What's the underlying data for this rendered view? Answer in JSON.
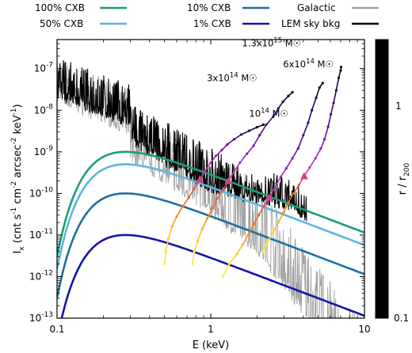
{
  "chart_data": {
    "type": "line",
    "xlabel": "E (keV)",
    "ylabel": "I_x (cnt s^-1 cm^-2 arcsec^-2 keV^-1)",
    "x_scale": "log",
    "y_scale": "log",
    "xlim": [
      0.1,
      10
    ],
    "ylim": [
      1e-13,
      5e-07
    ],
    "x_ticks": [
      {
        "v": 0.1,
        "label": "0.1"
      },
      {
        "v": 1,
        "label": "1"
      },
      {
        "v": 10,
        "label": "10"
      }
    ],
    "y_ticks": [
      {
        "v": 1e-13,
        "base": "10",
        "exp": "-13"
      },
      {
        "v": 1e-12,
        "base": "10",
        "exp": "-12"
      },
      {
        "v": 1e-11,
        "base": "10",
        "exp": "-11"
      },
      {
        "v": 1e-10,
        "base": "10",
        "exp": "-10"
      },
      {
        "v": 1e-09,
        "base": "10",
        "exp": "-9"
      },
      {
        "v": 1e-08,
        "base": "10",
        "exp": "-8"
      },
      {
        "v": 1e-07,
        "base": "10",
        "exp": "-7"
      }
    ],
    "legend": [
      {
        "label": "100% CXB",
        "color": "#1b9e77"
      },
      {
        "label": "10% CXB",
        "color": "#1f6f9f"
      },
      {
        "label": "Galactic",
        "color": "#a0a0a0"
      },
      {
        "label": "50% CXB",
        "color": "#5fb4e2"
      },
      {
        "label": "1% CXB",
        "color": "#1515a8"
      },
      {
        "label": "LEM sky bkg",
        "color": "#000000"
      }
    ],
    "cxb": [
      {
        "label": "100% CXB",
        "color": "#1b9e77",
        "norm": 1e-09
      },
      {
        "label": "50% CXB",
        "color": "#5fb4e2",
        "norm": 5e-10
      },
      {
        "label": "10% CXB",
        "color": "#1f6f9f",
        "norm": 1e-10
      },
      {
        "label": "1% CXB",
        "color": "#1515a8",
        "norm": 1e-11
      }
    ],
    "colorbar": {
      "label": "r / r200",
      "tick_labels": [
        "1",
        "0.1"
      ],
      "range": [
        0.1,
        2
      ],
      "colormap": [
        "#000000",
        "#2a0a5e",
        "#6a0fa8",
        "#a82fd0",
        "#d8408a",
        "#ea6020",
        "#f58a10",
        "#fbc02a",
        "#fff23a"
      ]
    },
    "clusters": [
      {
        "label_base": "10",
        "label_exp": "14",
        "label_unit": "M☉",
        "points": [
          [
            0.5,
            2e-12,
            0.1
          ],
          [
            0.51,
            4e-12,
            0.11
          ],
          [
            0.53,
            8e-12,
            0.13
          ],
          [
            0.56,
            1.6e-11,
            0.16
          ],
          [
            0.6,
            2.8e-11,
            0.2
          ],
          [
            0.66,
            5e-11,
            0.25
          ],
          [
            0.72,
            8e-11,
            0.3
          ],
          [
            0.78,
            1.3e-10,
            0.37
          ],
          [
            0.85,
            2.2e-10,
            0.45
          ],
          [
            0.92,
            3.5e-10,
            0.55
          ],
          [
            1.0,
            5.5e-10,
            0.65
          ],
          [
            1.08,
            8e-10,
            0.75
          ],
          [
            1.18,
            1.1e-09,
            0.85
          ],
          [
            1.28,
            1.5e-09,
            1.0
          ],
          [
            1.42,
            2e-09,
            1.15
          ],
          [
            1.58,
            2.6e-09,
            1.3
          ],
          [
            1.78,
            3.2e-09,
            1.5
          ],
          [
            2.0,
            3.9e-09,
            1.7
          ],
          [
            2.2,
            4.5e-09,
            2.0
          ]
        ]
      },
      {
        "label_base": "3x10",
        "label_exp": "14",
        "label_unit": "M☉",
        "points": [
          [
            0.76,
            2e-12,
            0.1
          ],
          [
            0.78,
            4e-12,
            0.11
          ],
          [
            0.82,
            7e-12,
            0.13
          ],
          [
            0.88,
            1.4e-11,
            0.16
          ],
          [
            0.95,
            2.5e-11,
            0.2
          ],
          [
            1.03,
            4.5e-11,
            0.25
          ],
          [
            1.1,
            7.5e-11,
            0.3
          ],
          [
            1.2,
            1.2e-10,
            0.37
          ],
          [
            1.3,
            2e-10,
            0.45
          ],
          [
            1.42,
            3.4e-10,
            0.55
          ],
          [
            1.55,
            5.5e-10,
            0.65
          ],
          [
            1.72,
            9e-10,
            0.75
          ],
          [
            1.9,
            1.4e-09,
            0.85
          ],
          [
            2.08,
            2.5e-09,
            1.0
          ],
          [
            2.3,
            4.5e-09,
            1.15
          ],
          [
            2.55,
            7e-09,
            1.3
          ],
          [
            2.75,
            1.1e-08,
            1.45
          ],
          [
            2.95,
            1.6e-08,
            1.6
          ],
          [
            3.2,
            2.2e-08,
            1.8
          ],
          [
            3.4,
            2.7e-08,
            2.0
          ]
        ]
      },
      {
        "label_base": "6x10",
        "label_exp": "14",
        "label_unit": "M☉",
        "points": [
          [
            1.2,
            1e-12,
            0.1
          ],
          [
            1.32,
            2e-12,
            0.11
          ],
          [
            1.48,
            3.5e-12,
            0.13
          ],
          [
            1.62,
            6e-12,
            0.16
          ],
          [
            1.75,
            1e-11,
            0.2
          ],
          [
            1.9,
            1.8e-11,
            0.25
          ],
          [
            2.05,
            3e-11,
            0.3
          ],
          [
            2.22,
            5e-11,
            0.37
          ],
          [
            2.4,
            8e-11,
            0.45
          ],
          [
            2.62,
            1.4e-10,
            0.55
          ],
          [
            2.85,
            2.5e-10,
            0.65
          ],
          [
            3.1,
            4e-10,
            0.75
          ],
          [
            3.4,
            7e-10,
            0.85
          ],
          [
            3.7,
            1.2e-09,
            1.0
          ],
          [
            4.0,
            2.5e-09,
            1.15
          ],
          [
            4.3,
            5e-09,
            1.3
          ],
          [
            4.55,
            1e-08,
            1.45
          ],
          [
            4.85,
            2e-08,
            1.6
          ],
          [
            5.1,
            3.5e-08,
            1.8
          ],
          [
            5.35,
            4.5e-08,
            2.0
          ]
        ]
      },
      {
        "label_base": "1.3x10",
        "label_exp": "15",
        "label_unit": "M☉",
        "points": [
          [
            2.2,
            4e-12,
            0.1
          ],
          [
            2.35,
            7e-12,
            0.11
          ],
          [
            2.55,
            1.2e-11,
            0.13
          ],
          [
            2.75,
            2e-11,
            0.16
          ],
          [
            2.98,
            3.5e-11,
            0.2
          ],
          [
            3.2,
            6e-11,
            0.25
          ],
          [
            3.45,
            1e-10,
            0.3
          ],
          [
            3.75,
            1.6e-10,
            0.37
          ],
          [
            4.05,
            2.6e-10,
            0.45
          ],
          [
            4.4,
            4.2e-10,
            0.55
          ],
          [
            4.8,
            7e-10,
            0.65
          ],
          [
            5.2,
            1.2e-09,
            0.75
          ],
          [
            5.5,
            2e-09,
            0.85
          ],
          [
            5.8,
            4e-09,
            1.0
          ],
          [
            6.05,
            8e-09,
            1.15
          ],
          [
            6.3,
            1.5e-08,
            1.3
          ],
          [
            6.55,
            3e-08,
            1.45
          ],
          [
            6.8,
            6e-08,
            1.6
          ],
          [
            7.0,
            9e-08,
            1.8
          ],
          [
            7.05,
            1.1e-07,
            2.0
          ]
        ]
      }
    ]
  }
}
